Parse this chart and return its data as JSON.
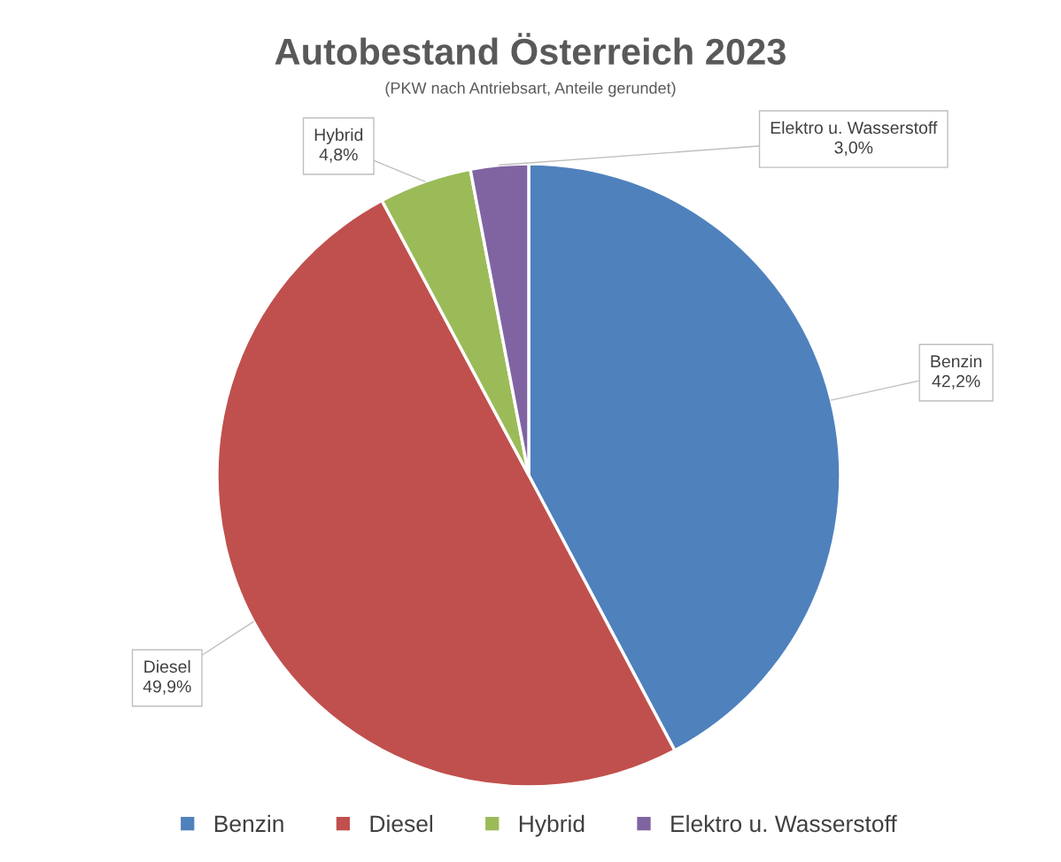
{
  "chart_data": {
    "type": "pie",
    "title": "Autobestand Österreich 2023",
    "subtitle": "(PKW nach Antriebsart, Anteile gerundet)",
    "categories": [
      "Benzin",
      "Diesel",
      "Hybrid",
      "Elektro u. Wasserstoff"
    ],
    "values": [
      42.2,
      49.9,
      4.8,
      3.0
    ],
    "value_labels": [
      "42,2%",
      "49,9%",
      "4,8%",
      "3,0%"
    ],
    "colors": [
      "#4f81bd",
      "#c0504d",
      "#9bbb59",
      "#8064a2"
    ],
    "legend": "bottom"
  }
}
